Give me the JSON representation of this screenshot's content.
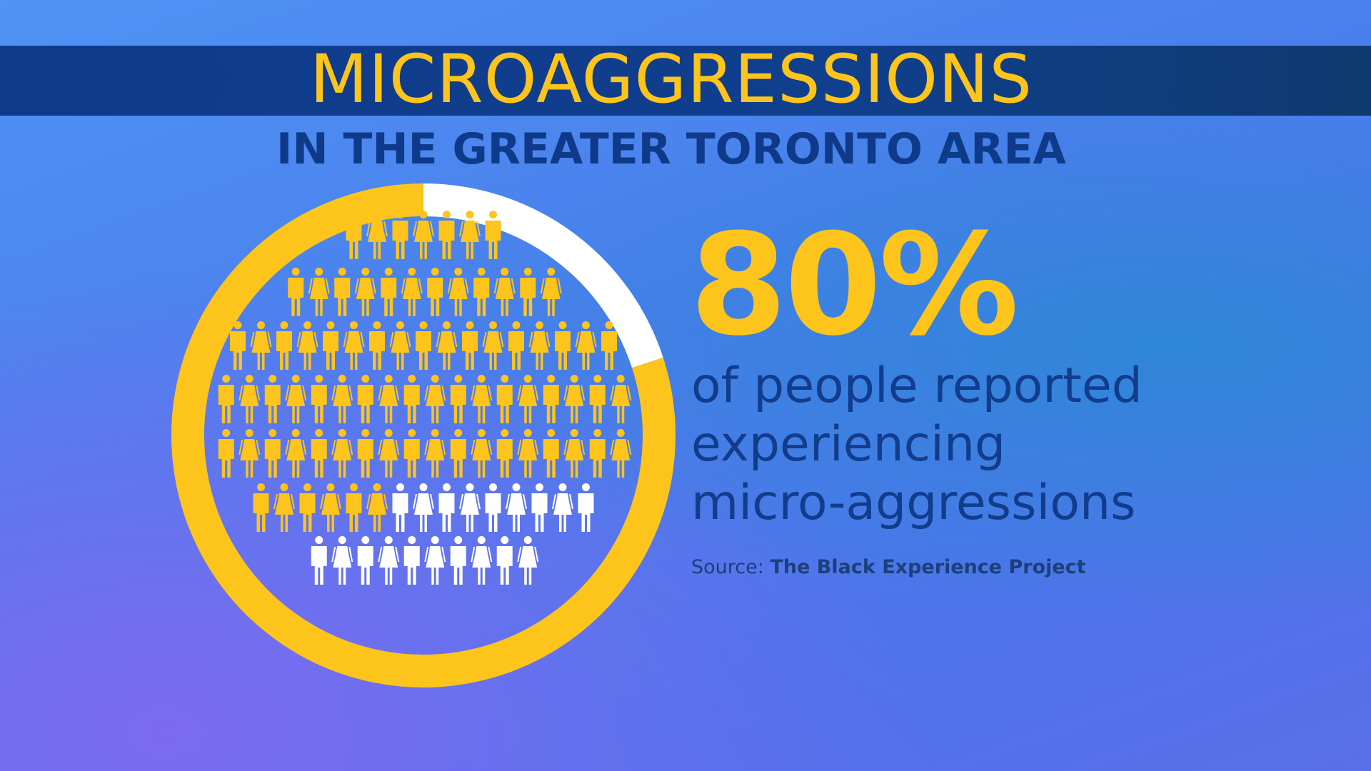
{
  "title": "MICROAGGRESSIONS",
  "subtitle": "IN THE GREATER TORONTO AREA",
  "stat": {
    "value": "80%",
    "description_lines": [
      "of people reported",
      "experiencing",
      "micro-aggressions"
    ]
  },
  "source": {
    "label": "Source:",
    "name": "The Black Experience Project"
  },
  "colors": {
    "highlight": "#fdc41c",
    "remainder": "#ffffff",
    "banner": "#0f3a8a",
    "text_dark": "#123c8c"
  },
  "chart_data": {
    "type": "pie",
    "categories": [
      "reported experiencing micro-aggressions",
      "did not"
    ],
    "values": [
      80,
      20
    ],
    "title": "",
    "icon_rows": [
      7,
      12,
      17,
      18,
      18,
      15,
      10
    ],
    "icon_rows_highlighted": [
      7,
      12,
      17,
      18,
      18,
      6,
      0
    ]
  }
}
